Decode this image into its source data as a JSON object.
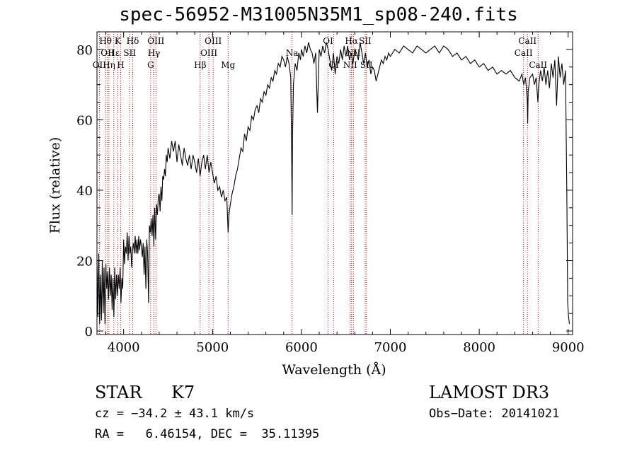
{
  "chart_data": {
    "type": "line",
    "title": "spec-56952-M31005N35M1_sp08-240.fits",
    "xlabel": "Wavelength (Å)",
    "ylabel": "Flux (relative)",
    "xlim": [
      3700,
      9050
    ],
    "ylim": [
      -1,
      85
    ],
    "x_ticks": [
      4000,
      5000,
      6000,
      7000,
      8000,
      9000
    ],
    "y_ticks": [
      0,
      20,
      40,
      60,
      80
    ],
    "series": [
      {
        "name": "flux",
        "points": [
          [
            3700,
            20
          ],
          [
            3710,
            4
          ],
          [
            3720,
            22
          ],
          [
            3730,
            2
          ],
          [
            3740,
            16
          ],
          [
            3750,
            3
          ],
          [
            3760,
            20
          ],
          [
            3770,
            5
          ],
          [
            3780,
            18
          ],
          [
            3790,
            2
          ],
          [
            3800,
            19
          ],
          [
            3810,
            12
          ],
          [
            3820,
            17
          ],
          [
            3830,
            9
          ],
          [
            3840,
            18
          ],
          [
            3850,
            10
          ],
          [
            3860,
            16
          ],
          [
            3870,
            6
          ],
          [
            3880,
            15
          ],
          [
            3890,
            4
          ],
          [
            3900,
            18
          ],
          [
            3910,
            9
          ],
          [
            3920,
            16
          ],
          [
            3930,
            10
          ],
          [
            3940,
            16
          ],
          [
            3950,
            12
          ],
          [
            3960,
            18
          ],
          [
            3970,
            8
          ],
          [
            3980,
            15
          ],
          [
            3990,
            12
          ],
          [
            4000,
            26
          ],
          [
            4010,
            19
          ],
          [
            4020,
            24
          ],
          [
            4030,
            22
          ],
          [
            4040,
            28
          ],
          [
            4050,
            20
          ],
          [
            4060,
            27
          ],
          [
            4070,
            22
          ],
          [
            4080,
            24
          ],
          [
            4090,
            18
          ],
          [
            4100,
            23
          ],
          [
            4110,
            25
          ],
          [
            4120,
            22
          ],
          [
            4130,
            27
          ],
          [
            4140,
            22
          ],
          [
            4150,
            26
          ],
          [
            4160,
            22
          ],
          [
            4170,
            27
          ],
          [
            4180,
            23
          ],
          [
            4190,
            26
          ],
          [
            4200,
            24
          ],
          [
            4210,
            21
          ],
          [
            4220,
            25
          ],
          [
            4230,
            16
          ],
          [
            4240,
            24
          ],
          [
            4250,
            12
          ],
          [
            4260,
            26
          ],
          [
            4270,
            22
          ],
          [
            4280,
            8
          ],
          [
            4290,
            30
          ],
          [
            4300,
            28
          ],
          [
            4310,
            32
          ],
          [
            4320,
            27
          ],
          [
            4330,
            33
          ],
          [
            4340,
            24
          ],
          [
            4350,
            35
          ],
          [
            4360,
            26
          ],
          [
            4370,
            36
          ],
          [
            4380,
            33
          ],
          [
            4390,
            38
          ],
          [
            4400,
            39
          ],
          [
            4410,
            34
          ],
          [
            4420,
            41
          ],
          [
            4430,
            37
          ],
          [
            4440,
            44
          ],
          [
            4450,
            43
          ],
          [
            4460,
            46
          ],
          [
            4470,
            44
          ],
          [
            4480,
            50
          ],
          [
            4490,
            48
          ],
          [
            4500,
            52
          ],
          [
            4520,
            49
          ],
          [
            4540,
            54
          ],
          [
            4560,
            51
          ],
          [
            4580,
            54
          ],
          [
            4600,
            48
          ],
          [
            4620,
            53
          ],
          [
            4640,
            50
          ],
          [
            4660,
            47
          ],
          [
            4680,
            52
          ],
          [
            4700,
            49
          ],
          [
            4720,
            47
          ],
          [
            4740,
            50
          ],
          [
            4760,
            46
          ],
          [
            4780,
            50
          ],
          [
            4800,
            48
          ],
          [
            4820,
            45
          ],
          [
            4840,
            49
          ],
          [
            4860,
            44
          ],
          [
            4880,
            48
          ],
          [
            4900,
            50
          ],
          [
            4920,
            46
          ],
          [
            4940,
            50
          ],
          [
            4960,
            45
          ],
          [
            4980,
            48
          ],
          [
            5000,
            45
          ],
          [
            5020,
            42
          ],
          [
            5040,
            44
          ],
          [
            5060,
            40
          ],
          [
            5080,
            41
          ],
          [
            5100,
            38
          ],
          [
            5120,
            40
          ],
          [
            5140,
            37
          ],
          [
            5160,
            38
          ],
          [
            5175,
            28
          ],
          [
            5185,
            33
          ],
          [
            5200,
            36
          ],
          [
            5220,
            39
          ],
          [
            5240,
            41
          ],
          [
            5260,
            44
          ],
          [
            5280,
            46
          ],
          [
            5300,
            49
          ],
          [
            5320,
            52
          ],
          [
            5340,
            51
          ],
          [
            5360,
            56
          ],
          [
            5380,
            54
          ],
          [
            5400,
            58
          ],
          [
            5420,
            57
          ],
          [
            5440,
            61
          ],
          [
            5460,
            60
          ],
          [
            5480,
            63
          ],
          [
            5500,
            64
          ],
          [
            5520,
            62
          ],
          [
            5540,
            66
          ],
          [
            5560,
            65
          ],
          [
            5580,
            68
          ],
          [
            5600,
            67
          ],
          [
            5620,
            70
          ],
          [
            5640,
            69
          ],
          [
            5660,
            72
          ],
          [
            5680,
            71
          ],
          [
            5700,
            74
          ],
          [
            5720,
            73
          ],
          [
            5740,
            76
          ],
          [
            5760,
            75
          ],
          [
            5780,
            78
          ],
          [
            5800,
            77
          ],
          [
            5820,
            75
          ],
          [
            5840,
            78
          ],
          [
            5860,
            76
          ],
          [
            5880,
            72
          ],
          [
            5890,
            50
          ],
          [
            5895,
            33
          ],
          [
            5900,
            55
          ],
          [
            5910,
            70
          ],
          [
            5930,
            76
          ],
          [
            5950,
            74
          ],
          [
            5970,
            79
          ],
          [
            5990,
            77
          ],
          [
            6000,
            80
          ],
          [
            6020,
            78
          ],
          [
            6040,
            81
          ],
          [
            6060,
            79
          ],
          [
            6080,
            82
          ],
          [
            6100,
            80
          ],
          [
            6120,
            79
          ],
          [
            6140,
            76
          ],
          [
            6160,
            79
          ],
          [
            6180,
            62
          ],
          [
            6200,
            80
          ],
          [
            6220,
            78
          ],
          [
            6240,
            81
          ],
          [
            6260,
            79
          ],
          [
            6280,
            82
          ],
          [
            6300,
            80
          ],
          [
            6320,
            77
          ],
          [
            6340,
            74
          ],
          [
            6360,
            79
          ],
          [
            6380,
            73
          ],
          [
            6400,
            78
          ],
          [
            6420,
            76
          ],
          [
            6440,
            80
          ],
          [
            6460,
            77
          ],
          [
            6480,
            81
          ],
          [
            6500,
            78
          ],
          [
            6520,
            81
          ],
          [
            6540,
            77
          ],
          [
            6560,
            79
          ],
          [
            6580,
            76
          ],
          [
            6600,
            80
          ],
          [
            6620,
            79
          ],
          [
            6640,
            77
          ],
          [
            6660,
            82
          ],
          [
            6680,
            79
          ],
          [
            6700,
            76
          ],
          [
            6720,
            79
          ],
          [
            6740,
            75
          ],
          [
            6760,
            77
          ],
          [
            6780,
            73
          ],
          [
            6800,
            75
          ],
          [
            6820,
            74
          ],
          [
            6840,
            71
          ],
          [
            6860,
            73
          ],
          [
            6880,
            75
          ],
          [
            6900,
            77
          ],
          [
            6920,
            76
          ],
          [
            6940,
            78
          ],
          [
            6960,
            77
          ],
          [
            6980,
            79
          ],
          [
            7000,
            78
          ],
          [
            7050,
            80
          ],
          [
            7100,
            79
          ],
          [
            7150,
            81
          ],
          [
            7200,
            80
          ],
          [
            7250,
            79
          ],
          [
            7300,
            81
          ],
          [
            7350,
            80
          ],
          [
            7400,
            79
          ],
          [
            7450,
            80
          ],
          [
            7500,
            81
          ],
          [
            7550,
            79
          ],
          [
            7600,
            81
          ],
          [
            7650,
            80
          ],
          [
            7700,
            78
          ],
          [
            7750,
            79
          ],
          [
            7800,
            77
          ],
          [
            7850,
            78
          ],
          [
            7900,
            76
          ],
          [
            7950,
            77
          ],
          [
            8000,
            75
          ],
          [
            8050,
            76
          ],
          [
            8100,
            74
          ],
          [
            8150,
            75
          ],
          [
            8200,
            73
          ],
          [
            8250,
            74
          ],
          [
            8300,
            73
          ],
          [
            8350,
            74
          ],
          [
            8400,
            72
          ],
          [
            8450,
            71
          ],
          [
            8480,
            73
          ],
          [
            8500,
            70
          ],
          [
            8520,
            72
          ],
          [
            8540,
            66
          ],
          [
            8545,
            59
          ],
          [
            8550,
            68
          ],
          [
            8570,
            72
          ],
          [
            8600,
            73
          ],
          [
            8620,
            70
          ],
          [
            8640,
            72
          ],
          [
            8660,
            65
          ],
          [
            8670,
            70
          ],
          [
            8690,
            74
          ],
          [
            8710,
            71
          ],
          [
            8730,
            75
          ],
          [
            8750,
            70
          ],
          [
            8770,
            74
          ],
          [
            8790,
            69
          ],
          [
            8810,
            76
          ],
          [
            8830,
            72
          ],
          [
            8850,
            77
          ],
          [
            8870,
            64
          ],
          [
            8890,
            78
          ],
          [
            8910,
            72
          ],
          [
            8930,
            76
          ],
          [
            8950,
            70
          ],
          [
            8970,
            74
          ],
          [
            8985,
            40
          ],
          [
            8995,
            8
          ],
          [
            9005,
            4
          ],
          [
            9015,
            2
          ]
        ]
      }
    ],
    "line_markers": [
      {
        "name": "OII",
        "x": 3727,
        "row": 2
      },
      {
        "name": "Hθ",
        "x": 3797,
        "row": 0
      },
      {
        "name": "OII",
        "x": 3819,
        "row": 1
      },
      {
        "name": "Hη",
        "x": 3835,
        "row": 2
      },
      {
        "name": "Hε",
        "x": 3889,
        "row": 1
      },
      {
        "name": "K",
        "x": 3934,
        "row": 0
      },
      {
        "name": "H",
        "x": 3968,
        "row": 2
      },
      {
        "name": "SII",
        "x": 4068,
        "row": 1
      },
      {
        "name": "Hδ",
        "x": 4102,
        "row": 0
      },
      {
        "name": "G",
        "x": 4304,
        "row": 2
      },
      {
        "name": "Hγ",
        "x": 4341,
        "row": 1
      },
      {
        "name": "OIII",
        "x": 4363,
        "row": 0
      },
      {
        "name": "Hβ",
        "x": 4861,
        "row": 2
      },
      {
        "name": "OIII",
        "x": 4959,
        "row": 1
      },
      {
        "name": "OIII",
        "x": 5007,
        "row": 0
      },
      {
        "name": "Mg",
        "x": 5175,
        "row": 2
      },
      {
        "name": "Na",
        "x": 5894,
        "row": 1
      },
      {
        "name": "OI",
        "x": 6300,
        "row": 0
      },
      {
        "name": "OI",
        "x": 6364,
        "row": 2
      },
      {
        "name": "NII",
        "x": 6548,
        "row": 2
      },
      {
        "name": "Hα",
        "x": 6563,
        "row": 0
      },
      {
        "name": "NII",
        "x": 6584,
        "row": 1
      },
      {
        "name": "SII",
        "x": 6717,
        "row": 0
      },
      {
        "name": "SII",
        "x": 6731,
        "row": 2
      },
      {
        "name": "CaII",
        "x": 8498,
        "row": 1
      },
      {
        "name": "CaII",
        "x": 8542,
        "row": 0
      },
      {
        "name": "CaII",
        "x": 8662,
        "row": 2
      }
    ]
  },
  "footer": {
    "star_label": "STAR",
    "spectral_type": "K7",
    "survey": "LAMOST DR3",
    "cz": "cz = −34.2 ± 43.1 km/s",
    "obs_date": "Obs−Date: 20141021",
    "radec": "RA =   6.46154, DEC =  35.11395"
  },
  "colors": {
    "axis": "#000000",
    "marker": "#cc0000",
    "spectrum": "#000000"
  }
}
